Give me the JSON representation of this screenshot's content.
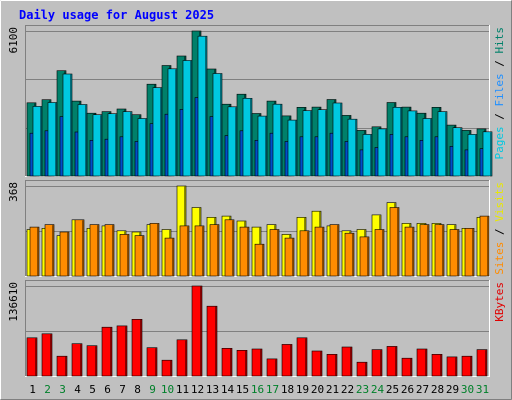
{
  "chart_data": {
    "type": "bar",
    "title": "Daily usage for August 2025",
    "categories": [
      "1",
      "2",
      "3",
      "4",
      "5",
      "6",
      "7",
      "8",
      "9",
      "10",
      "11",
      "12",
      "13",
      "14",
      "15",
      "16",
      "17",
      "18",
      "19",
      "20",
      "21",
      "22",
      "23",
      "24",
      "25",
      "26",
      "27",
      "28",
      "29",
      "30",
      "31"
    ],
    "weekend_days": [
      "2",
      "3",
      "9",
      "10",
      "16",
      "17",
      "23",
      "24",
      "30",
      "31"
    ],
    "panels": [
      {
        "id": "top",
        "max_label": "6100",
        "ymax": 6100,
        "legend": [
          {
            "text": "Pages",
            "color": "#00c8e0"
          },
          {
            "text": " / ",
            "color": "#000000"
          },
          {
            "text": "Files",
            "color": "#1f8fff"
          },
          {
            "text": " / ",
            "color": "#000000"
          },
          {
            "text": "Hits",
            "color": "#00806a"
          }
        ],
        "series": [
          {
            "name": "Hits",
            "color": "#00806a",
            "values": [
              3080,
              3210,
              4430,
              3150,
              2640,
              2710,
              2820,
              2580,
              3860,
              4650,
              5050,
              6100,
              4500,
              3020,
              3440,
              2630,
              3150,
              2530,
              2890,
              2900,
              3220,
              2550,
              1920,
              2070,
              3090,
              2900,
              2640,
              2890,
              2140,
              1920,
              1980
            ]
          },
          {
            "name": "Files",
            "color": "#0050c8",
            "values": [
              1800,
              1900,
              2500,
              1850,
              1500,
              1550,
              1650,
              1450,
              2200,
              2600,
              2800,
              3300,
              2500,
              1700,
              1900,
              1500,
              1800,
              1450,
              1650,
              1650,
              1800,
              1450,
              1100,
              1200,
              1750,
              1650,
              1500,
              1650,
              1250,
              1100,
              1150
            ]
          },
          {
            "name": "Pages",
            "color": "#00c8e0",
            "values": [
              2930,
              3090,
              4290,
              3010,
              2580,
              2620,
              2710,
              2420,
              3720,
              4510,
              4860,
              5880,
              4310,
              2910,
              3270,
              2520,
              3020,
              2350,
              2750,
              2790,
              3070,
              2390,
              1750,
              1980,
              2890,
              2740,
              2420,
              2710,
              2030,
              1750,
              1860
            ]
          }
        ]
      },
      {
        "id": "middle",
        "max_label": "368",
        "ymax": 368,
        "legend": [
          {
            "text": "Sites",
            "color": "#ff8c00"
          },
          {
            "text": " / ",
            "color": "#000000"
          },
          {
            "text": "Visits",
            "color": "#e8e800"
          }
        ],
        "series": [
          {
            "name": "Visits",
            "color": "#ffff00",
            "values": [
              190,
              195,
              165,
              230,
              195,
              205,
              185,
              180,
              210,
              190,
              368,
              280,
              240,
              245,
              225,
              200,
              210,
              170,
              240,
              265,
              205,
              185,
              190,
              250,
              300,
              215,
              215,
              215,
              210,
              195,
              240
            ]
          },
          {
            "name": "Sites",
            "color": "#ff8c00",
            "values": [
              200,
              210,
              180,
              230,
              210,
              210,
              170,
              165,
              215,
              155,
              205,
              205,
              210,
              230,
              200,
              130,
              190,
              155,
              185,
              200,
              210,
              175,
              160,
              190,
              280,
              200,
              210,
              210,
              190,
              195,
              245
            ]
          }
        ]
      },
      {
        "id": "bottom",
        "max_label": "136610",
        "ymax": 136610,
        "legend": [
          {
            "text": "KBytes",
            "color": "#e00000"
          }
        ],
        "series": [
          {
            "name": "KBytes",
            "color": "#ff0000",
            "values": [
              58000,
              64000,
              30000,
              49000,
              46000,
              74000,
              76000,
              86000,
              43000,
              24000,
              55000,
              136610,
              106000,
              42000,
              39000,
              41000,
              26000,
              48000,
              58000,
              38000,
              33000,
              44000,
              21000,
              40000,
              45000,
              27000,
              41000,
              33000,
              29000,
              30000,
              40000
            ]
          }
        ]
      }
    ],
    "colors": {
      "weekday": "#000000",
      "weekend": "#00802a",
      "title": "#0000ff",
      "plot_bg": "#c0c0c0",
      "grid": "#808080"
    }
  }
}
